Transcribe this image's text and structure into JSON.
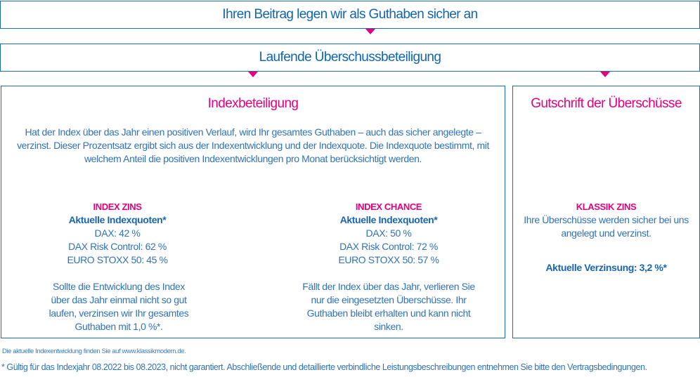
{
  "header": {
    "title": "Ihren Beitrag legen wir als Guthaben sicher an",
    "subtitle": "Laufende Überschussbeteiligung"
  },
  "index": {
    "title": "Indexbeteiligung",
    "intro": "Hat der Index über das Jahr einen positiven Verlauf, wird Ihr gesamtes Guthaben – auch das sicher angelegte – verzinst. Dieser Prozentsatz ergibt sich aus der Indexentwicklung und der Indexquote. Die Indexquote bestimmt, mit welchem Anteil die positiven Indexentwicklungen pro Monat berücksichtigt werden.",
    "zins": {
      "name": "INDEX ZINS",
      "label": "Aktuelle Indexquoten*",
      "quotes": [
        "DAX: 42 %",
        "DAX Risk Control: 62 %",
        "EURO STOXX 50: 45 %"
      ],
      "note": "Sollte die Entwicklung des Index über das Jahr einmal nicht so gut laufen, verzinsen wir Ihr gesamtes Guthaben mit 1,0 %*."
    },
    "chance": {
      "name": "INDEX CHANCE",
      "label": "Aktuelle Indexquoten*",
      "quotes": [
        "DAX: 50 %",
        "DAX Risk Control: 72 %",
        "EURO STOXX 50: 57 %"
      ],
      "note": "Fällt der Index über das Jahr, verlieren Sie nur die eingesetzten Überschüsse. Ihr Guthaben bleibt erhalten und kann nicht sinken."
    }
  },
  "gutschrift": {
    "title": "Gutschrift der Überschüsse",
    "name": "KLASSIK ZINS",
    "text": "Ihre Überschüsse werden sicher bei uns angelegt und verzinst.",
    "rate": "Aktuelle Verzinsung: 3,2 %*"
  },
  "footer": {
    "link_note": "Die aktuelle Indexentwicklung finden Sie auf www.klassikmodern.de.",
    "disclaimer": "* Gültig für das Indexjahr 08.2022 bis 08.2023, nicht garantiert. Abschließende und detaillierte verbindliche Leistungsbeschreibungen entnehmen Sie bitte den Vertragsbedingungen."
  },
  "colors": {
    "blue": "#1a6db5",
    "magenta": "#e5007d"
  }
}
